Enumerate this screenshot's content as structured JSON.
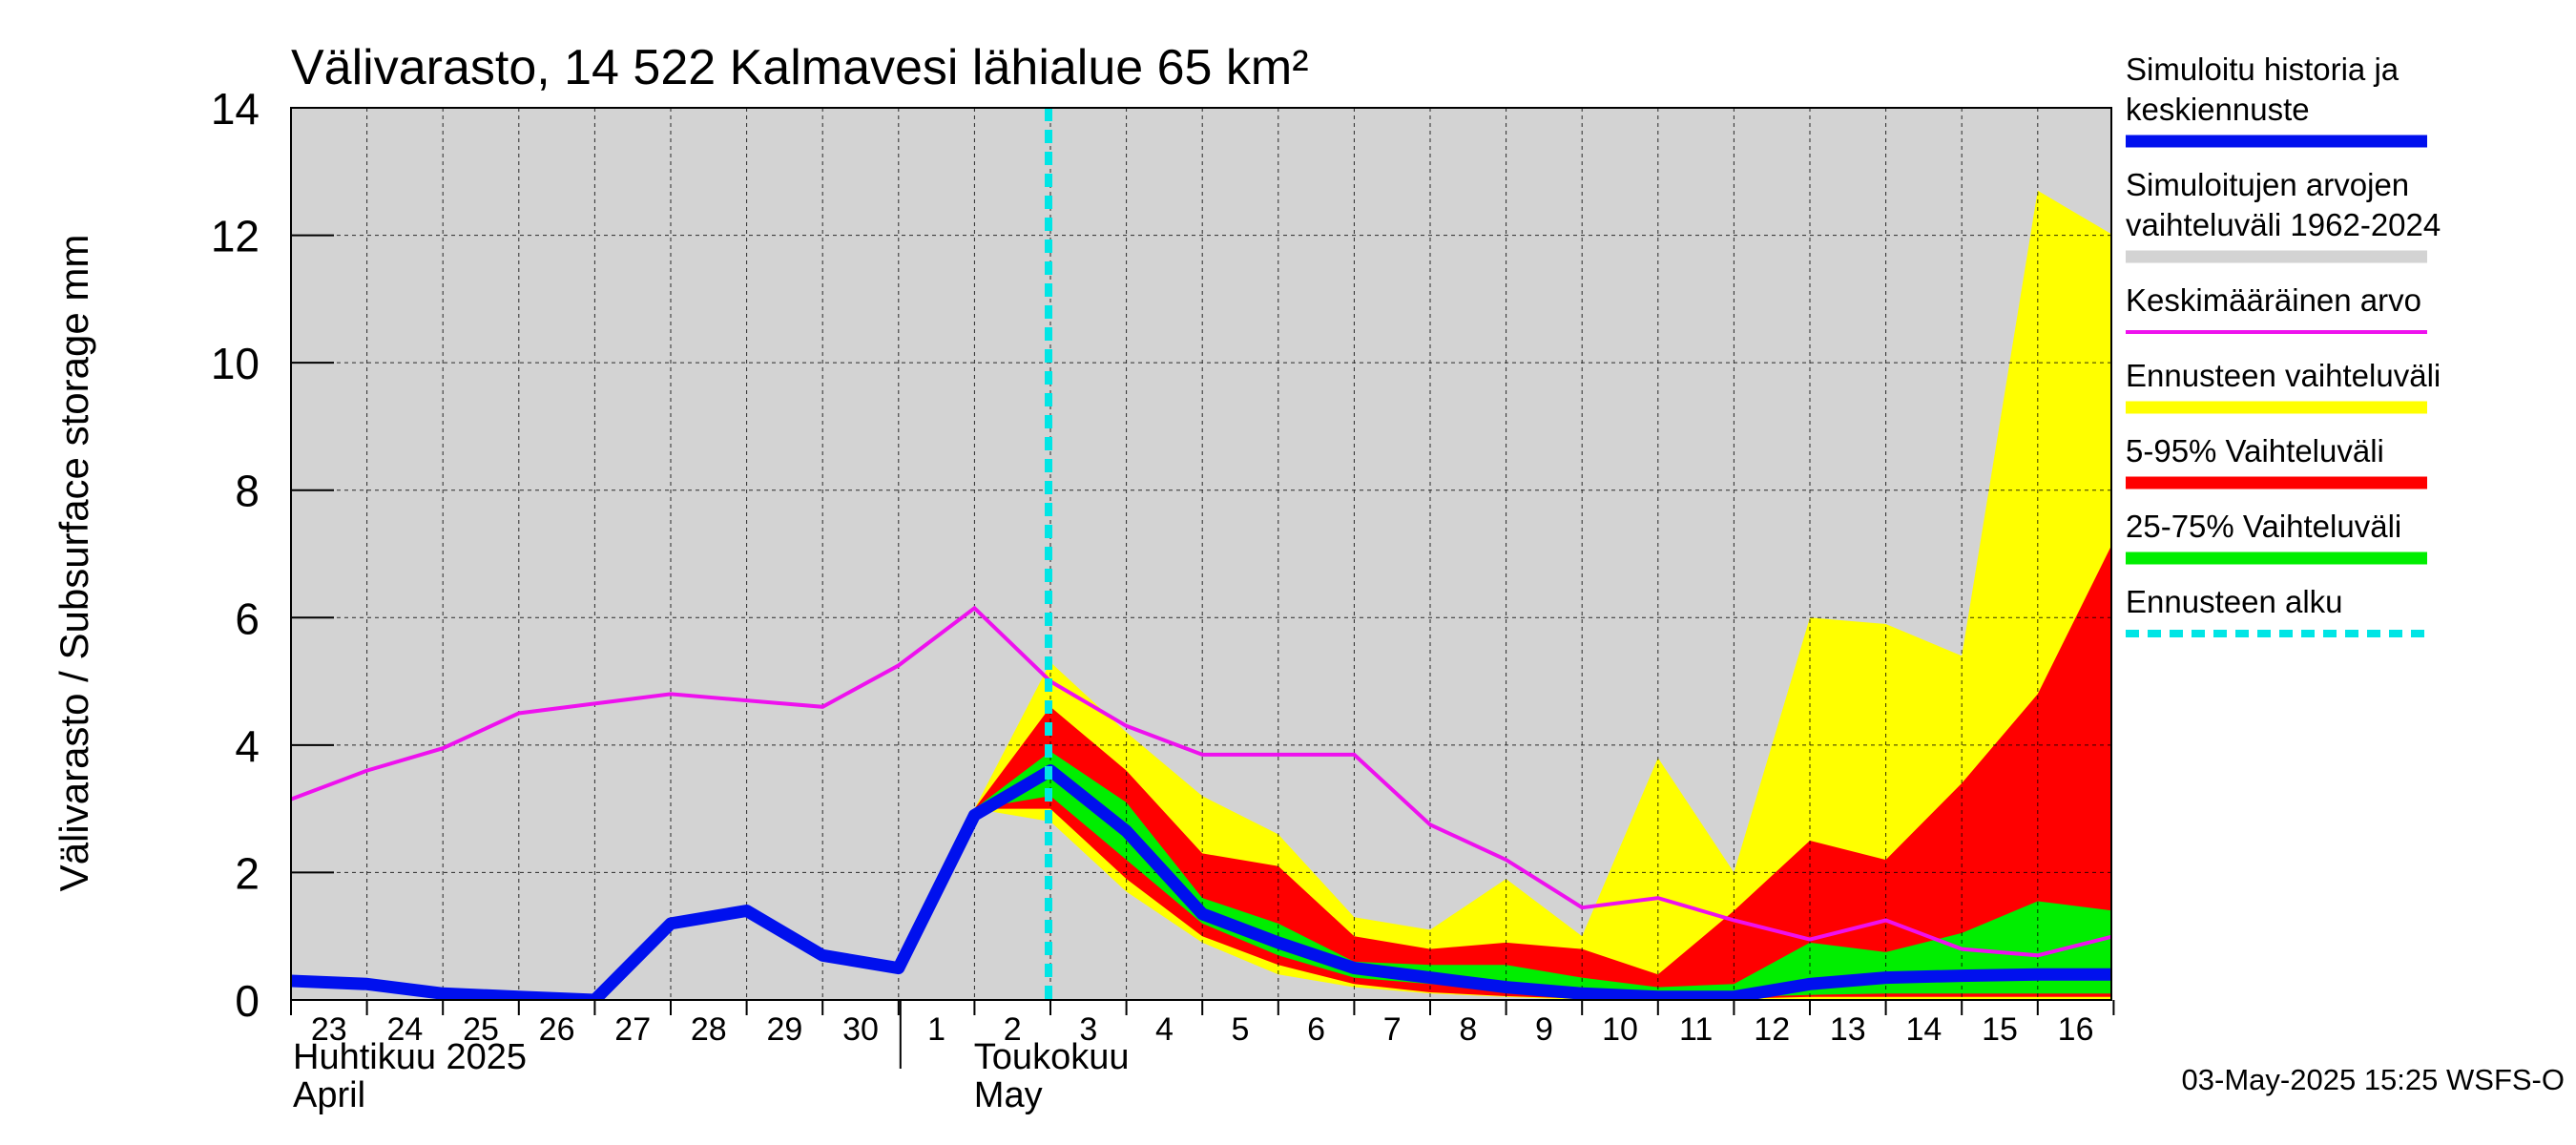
{
  "chart_data": {
    "type": "area",
    "title": "Välivarasto, 14 522 Kalmavesi lähialue 65 km²",
    "ylabel": "Välivarasto / Subsurface storage  mm",
    "ylim": [
      0,
      14
    ],
    "yticks": [
      0,
      2,
      4,
      6,
      8,
      10,
      12,
      14
    ],
    "grid": true,
    "legend_position": "right",
    "x_start": "23.4.2025",
    "x_end": "16.5.2025",
    "forecast_start_index": 10,
    "day_labels": [
      "23",
      "24",
      "25",
      "26",
      "27",
      "28",
      "29",
      "30",
      "1",
      "2",
      "3",
      "4",
      "5",
      "6",
      "7",
      "8",
      "9",
      "10",
      "11",
      "12",
      "13",
      "14",
      "15",
      "16"
    ],
    "month_labels": [
      {
        "fi": "Huhtikuu  2025",
        "en": "April",
        "day_index": 0
      },
      {
        "fi": "Toukokuu",
        "en": "May",
        "day_index": 8
      }
    ],
    "historical_range": {
      "lower": [
        0,
        0,
        0,
        0,
        0,
        0,
        0,
        0,
        0,
        0,
        0,
        0,
        0,
        0,
        0,
        0,
        0,
        0,
        0,
        0,
        0,
        0,
        0,
        0,
        0
      ],
      "upper": [
        14,
        14,
        14,
        14,
        14,
        14,
        14,
        14,
        14,
        14,
        14,
        14,
        14,
        14,
        14,
        14,
        14,
        14,
        14,
        14,
        14,
        14,
        14,
        14,
        14
      ]
    },
    "mean_value": [
      3.15,
      3.6,
      3.95,
      4.5,
      4.65,
      4.8,
      4.7,
      4.6,
      5.25,
      6.15,
      5.0,
      4.3,
      3.85,
      3.85,
      3.85,
      2.75,
      2.2,
      1.45,
      1.6,
      1.25,
      0.95,
      1.25,
      0.8,
      0.7,
      1.0
    ],
    "simulated": [
      0.3,
      0.25,
      0.1,
      0.05,
      0.0,
      1.2,
      1.4,
      0.7,
      0.5,
      2.9,
      3.6,
      2.65,
      1.35,
      0.9,
      0.5,
      0.35,
      0.2,
      0.1,
      0.05,
      0.05,
      0.25,
      0.35,
      0.38,
      0.4,
      0.4
    ],
    "forecast_range": {
      "start_index": 9,
      "lower": [
        3.0,
        2.8,
        1.7,
        0.9,
        0.4,
        0.2,
        0.1,
        0.05,
        0.0,
        0.0,
        0.0,
        0.0,
        0.0,
        0.0,
        0.0,
        0.0
      ],
      "upper": [
        3.0,
        5.3,
        4.2,
        3.2,
        2.6,
        1.3,
        1.1,
        1.9,
        1.0,
        3.8,
        2.0,
        6.0,
        5.9,
        5.4,
        12.7,
        12.0
      ]
    },
    "range_5_95": {
      "start_index": 9,
      "lower": [
        3.0,
        3.0,
        1.9,
        1.0,
        0.55,
        0.25,
        0.12,
        0.06,
        0.02,
        0.01,
        0.02,
        0.05,
        0.05,
        0.05,
        0.05,
        0.05
      ],
      "upper": [
        3.0,
        4.6,
        3.6,
        2.3,
        2.1,
        1.0,
        0.8,
        0.9,
        0.8,
        0.4,
        1.4,
        2.5,
        2.2,
        3.4,
        4.8,
        7.2
      ]
    },
    "range_25_75": {
      "start_index": 9,
      "lower": [
        3.0,
        3.2,
        2.2,
        1.2,
        0.7,
        0.35,
        0.25,
        0.15,
        0.1,
        0.05,
        0.05,
        0.08,
        0.1,
        0.1,
        0.1,
        0.1
      ],
      "upper": [
        3.0,
        3.9,
        3.1,
        1.6,
        1.2,
        0.6,
        0.55,
        0.55,
        0.35,
        0.2,
        0.25,
        0.9,
        0.75,
        1.05,
        1.55,
        1.4
      ]
    },
    "legend": [
      {
        "label": "Simuloitu historia ja keskiennuste",
        "lines": [
          "Simuloitu historia ja",
          "keskiennuste"
        ],
        "color": "#0010ee",
        "style": "thick"
      },
      {
        "label": "Simuloitujen arvojen vaihteluväli 1962-2024",
        "lines": [
          "Simuloitujen arvojen",
          "vaihteluväli 1962-2024"
        ],
        "color": "#d3d3d3",
        "style": "band"
      },
      {
        "label": "Keskimääräinen arvo",
        "lines": [
          "Keskimääräinen arvo"
        ],
        "color": "#ee11ee",
        "style": "line"
      },
      {
        "label": "Ennusteen vaihteluväli",
        "lines": [
          "Ennusteen vaihteluväli"
        ],
        "color": "#ffff00",
        "style": "band"
      },
      {
        "label": "5-95% Vaihteluväli",
        "lines": [
          "5-95% Vaihteluväli"
        ],
        "color": "#ff0000",
        "style": "band"
      },
      {
        "label": "25-75% Vaihteluväli",
        "lines": [
          "25-75% Vaihteluväli"
        ],
        "color": "#00ee00",
        "style": "band"
      },
      {
        "label": "Ennusteen alku",
        "lines": [
          "Ennusteen alku"
        ],
        "color": "#00e5e5",
        "style": "dashed"
      }
    ],
    "footer": "03-May-2025 15:25 WSFS-O"
  }
}
